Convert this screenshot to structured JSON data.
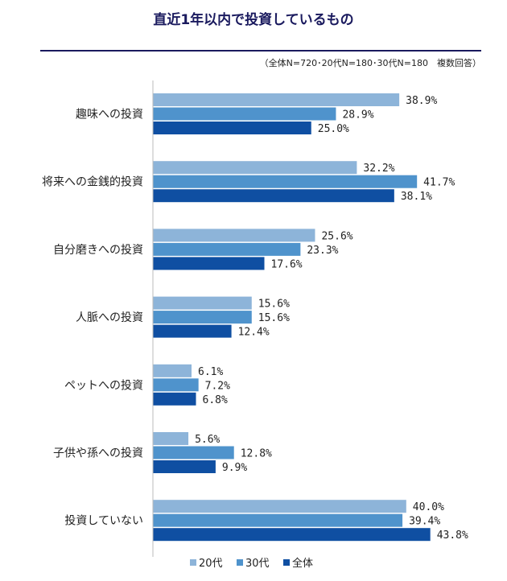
{
  "chart_data": {
    "type": "bar",
    "orientation": "horizontal",
    "title": "直近1年以内で投資しているもの",
    "note": "（全体N=720･20代N=180･30代N=180　複数回答）",
    "categories": [
      "趣味への投資",
      "将来への金銭的投資",
      "自分磨きへの投資",
      "人脈への投資",
      "ペットへの投資",
      "子供や孫への投資",
      "投資していない"
    ],
    "series": [
      {
        "name": "20代",
        "color": "#8db4d9",
        "values": [
          38.9,
          32.2,
          25.6,
          15.6,
          6.1,
          5.6,
          40.0
        ],
        "labels": [
          "38.9%",
          "32.2%",
          "25.6%",
          "15.6%",
          "6.1%",
          "5.6%",
          "40.0%"
        ]
      },
      {
        "name": "30代",
        "color": "#4f93cc",
        "values": [
          28.9,
          41.7,
          23.3,
          15.6,
          7.2,
          12.8,
          39.4
        ],
        "labels": [
          "28.9%",
          "41.7%",
          "23.3%",
          "15.6%",
          "7.2%",
          "12.8%",
          "39.4%"
        ]
      },
      {
        "name": "全体",
        "color": "#0f4fa2",
        "values": [
          25.0,
          38.1,
          17.6,
          12.4,
          6.8,
          9.9,
          43.8
        ],
        "labels": [
          "25.0%",
          "38.1%",
          "17.6%",
          "12.4%",
          "6.8%",
          "9.9%",
          "43.8%"
        ]
      }
    ],
    "xlim": [
      0,
      50
    ],
    "grid": false,
    "legend_position": "bottom-center"
  }
}
